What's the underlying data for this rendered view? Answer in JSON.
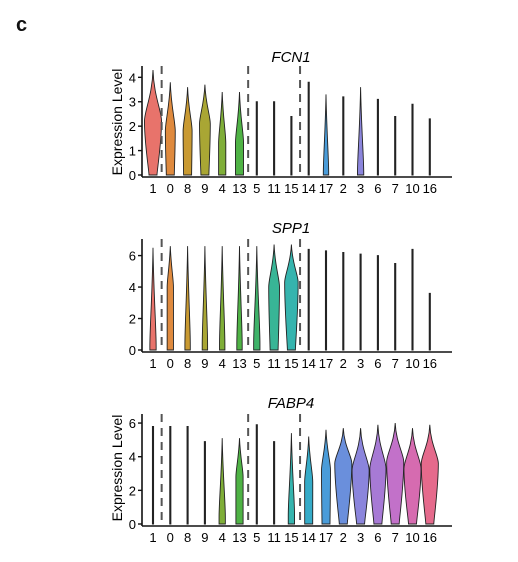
{
  "panel_label": "c",
  "chart_data": [
    {
      "type": "violin",
      "title": "FCN1",
      "xlabel": "",
      "ylabel": "Expression Level",
      "ylim": [
        0,
        4.3
      ],
      "yticks": [
        0,
        1,
        2,
        3,
        4
      ],
      "categories": [
        "1",
        "0",
        "8",
        "9",
        "4",
        "13",
        "5",
        "11",
        "15",
        "14",
        "17",
        "2",
        "3",
        "6",
        "7",
        "10",
        "16"
      ],
      "max_values": [
        4.3,
        3.8,
        3.6,
        3.7,
        3.4,
        3.4,
        3.0,
        3.0,
        2.4,
        3.8,
        3.3,
        3.2,
        3.6,
        3.1,
        2.4,
        2.9,
        2.3
      ],
      "violin_width": [
        0.95,
        0.55,
        0.5,
        0.6,
        0.4,
        0.45,
        0.1,
        0.05,
        0.05,
        0.1,
        0.3,
        0.1,
        0.35,
        0.1,
        0.05,
        0.05,
        0.05
      ],
      "violin_center": [
        2.2,
        1.8,
        1.8,
        2.1,
        1.3,
        1.3,
        0.0,
        0.0,
        0.0,
        0.0,
        0.05,
        0.0,
        0.05,
        0.0,
        0.0,
        0.0,
        0.0
      ],
      "dividers_after_index": [
        0,
        5,
        8
      ]
    },
    {
      "type": "violin",
      "title": "SPP1",
      "xlabel": "",
      "ylabel": "",
      "ylim": [
        0,
        6.8
      ],
      "yticks": [
        0,
        2,
        4,
        6
      ],
      "categories": [
        "1",
        "0",
        "8",
        "9",
        "4",
        "13",
        "5",
        "11",
        "15",
        "14",
        "17",
        "2",
        "3",
        "6",
        "7",
        "10",
        "16"
      ],
      "max_values": [
        6.5,
        6.6,
        6.6,
        6.6,
        6.6,
        6.6,
        6.6,
        6.7,
        6.7,
        6.4,
        6.3,
        6.2,
        6.1,
        6.0,
        5.5,
        6.4,
        3.6
      ],
      "violin_width": [
        0.35,
        0.35,
        0.3,
        0.3,
        0.3,
        0.3,
        0.35,
        0.6,
        0.75,
        0.05,
        0.05,
        0.05,
        0.05,
        0.05,
        0.05,
        0.05,
        0.05
      ],
      "violin_center": [
        0.2,
        4.0,
        0.3,
        0.3,
        0.3,
        0.3,
        0.4,
        4.0,
        4.3,
        0.0,
        0.0,
        0.0,
        0.0,
        0.0,
        0.0,
        0.0,
        0.0
      ],
      "dividers_after_index": [
        0,
        5,
        8
      ]
    },
    {
      "type": "violin",
      "title": "FABP4",
      "xlabel": "",
      "ylabel": "Expression Level",
      "ylim": [
        0,
        6.3
      ],
      "yticks": [
        0,
        2,
        4,
        6
      ],
      "categories": [
        "1",
        "0",
        "8",
        "9",
        "4",
        "13",
        "5",
        "11",
        "15",
        "14",
        "17",
        "2",
        "3",
        "6",
        "7",
        "10",
        "16"
      ],
      "max_values": [
        5.8,
        5.8,
        5.8,
        4.9,
        5.1,
        5.1,
        5.9,
        4.9,
        5.4,
        5.2,
        5.6,
        5.7,
        5.7,
        5.9,
        6.0,
        5.7,
        5.9
      ],
      "violin_width": [
        0.05,
        0.05,
        0.05,
        0.05,
        0.35,
        0.4,
        0.05,
        0.05,
        0.35,
        0.45,
        0.5,
        0.95,
        0.95,
        0.9,
        0.95,
        0.95,
        0.95
      ],
      "violin_center": [
        0.0,
        0.0,
        0.0,
        0.0,
        0.4,
        2.8,
        0.0,
        0.0,
        0.5,
        2.5,
        3.2,
        3.6,
        3.2,
        3.3,
        3.7,
        3.3,
        3.6
      ],
      "dividers_after_index": [
        0,
        5,
        8
      ]
    }
  ],
  "colors": [
    "#e8736b",
    "#df8a3e",
    "#c99a32",
    "#a9a634",
    "#7fae38",
    "#4fb345",
    "#3fb36a",
    "#38b596",
    "#35b4ae",
    "#35abc8",
    "#4a9cd9",
    "#6a8fdc",
    "#8b85dc",
    "#a77ad5",
    "#c271c9",
    "#d66bb0",
    "#e56a8c"
  ]
}
